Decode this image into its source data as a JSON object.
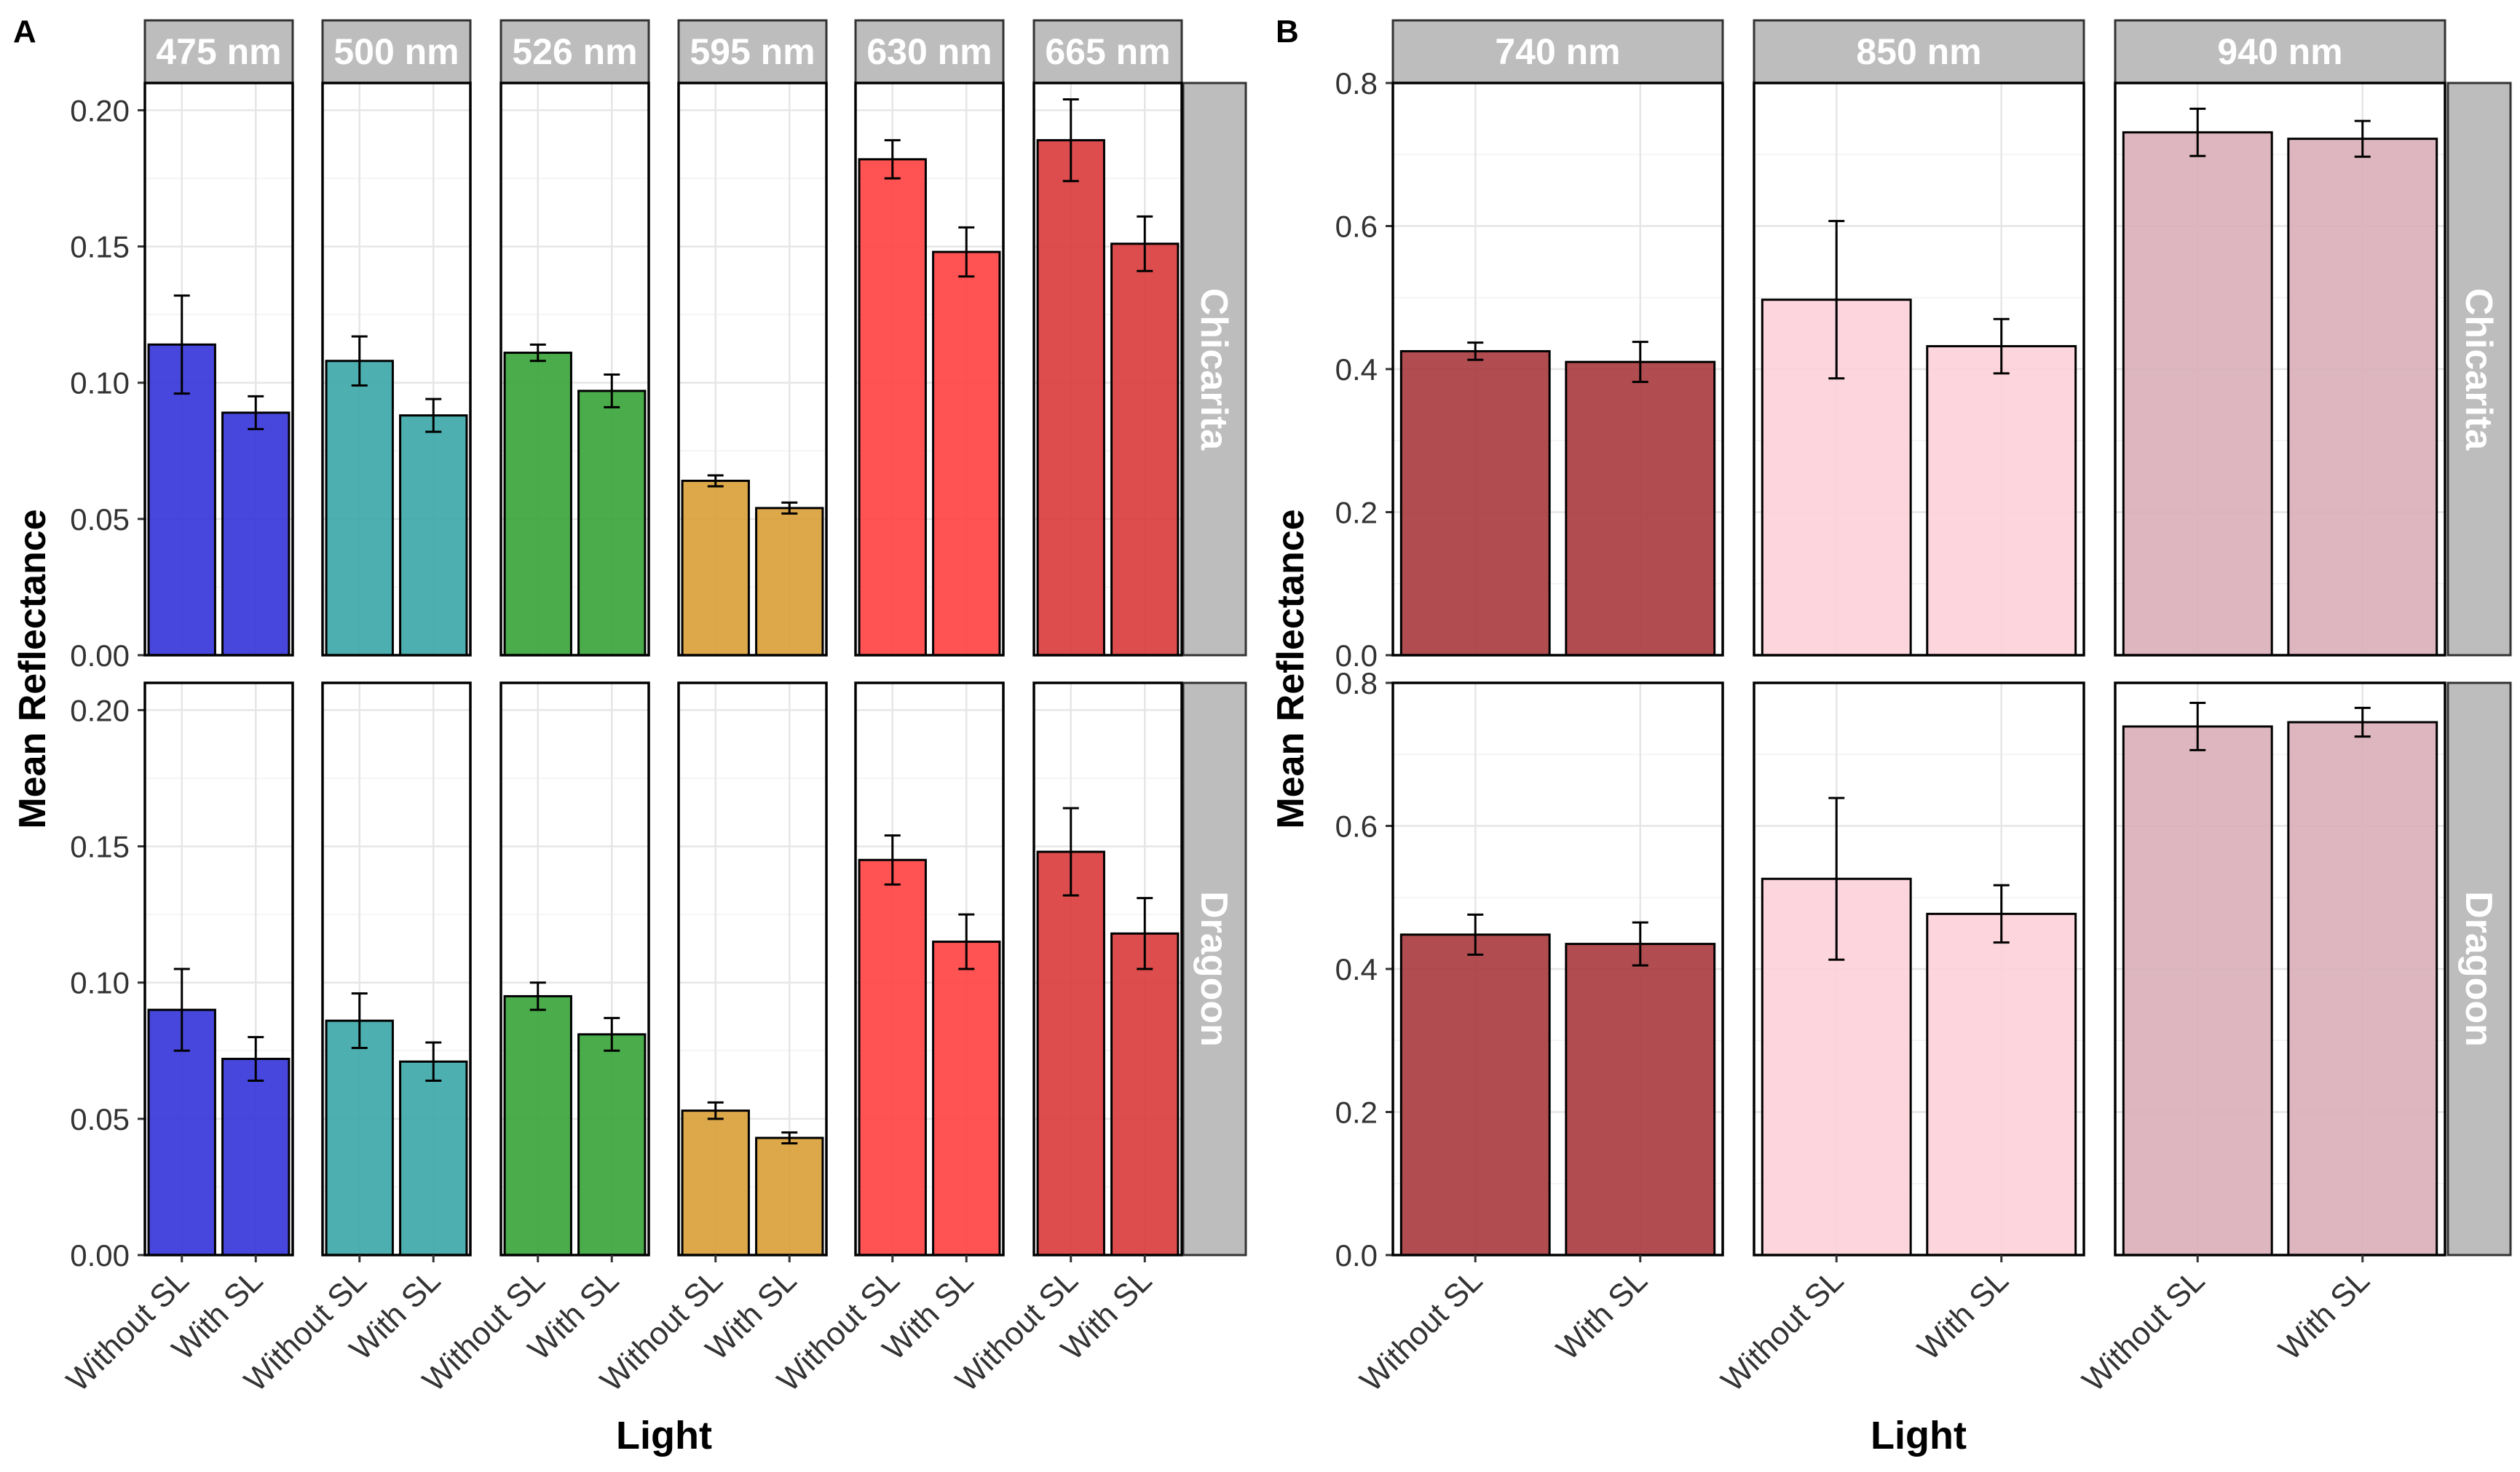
{
  "figure": {
    "panel_a_letter": "A",
    "panel_b_letter": "B"
  },
  "chart_data": [
    {
      "panel": "A",
      "type": "bar",
      "title": "",
      "xlabel": "Light",
      "ylabel": "Mean Reflectance",
      "categories": [
        "Without SL",
        "With SL"
      ],
      "ylim": [
        0,
        0.21
      ],
      "yticks": [
        "0.00",
        "0.05",
        "0.10",
        "0.15",
        "0.20"
      ],
      "ytick_values": [
        0,
        0.05,
        0.1,
        0.15,
        0.2
      ],
      "grid": true,
      "rows": [
        "Chicarita",
        "Dragoon"
      ],
      "cols": [
        {
          "label": "475 nm",
          "color": "#3333d9"
        },
        {
          "label": "500 nm",
          "color": "#3aa6a6"
        },
        {
          "label": "526 nm",
          "color": "#36a336"
        },
        {
          "label": "595 nm",
          "color": "#d99e36"
        },
        {
          "label": "630 nm",
          "color": "#ff4040"
        },
        {
          "label": "665 nm",
          "color": "#d93a3a"
        }
      ],
      "values": [
        [
          [
            0.114,
            0.089
          ],
          [
            0.108,
            0.088
          ],
          [
            0.111,
            0.097
          ],
          [
            0.064,
            0.054
          ],
          [
            0.182,
            0.148
          ],
          [
            0.189,
            0.151
          ]
        ],
        [
          [
            0.09,
            0.072
          ],
          [
            0.086,
            0.071
          ],
          [
            0.095,
            0.081
          ],
          [
            0.053,
            0.043
          ],
          [
            0.145,
            0.115
          ],
          [
            0.148,
            0.118
          ]
        ]
      ],
      "errors": [
        [
          [
            0.018,
            0.006
          ],
          [
            0.009,
            0.006
          ],
          [
            0.003,
            0.006
          ],
          [
            0.002,
            0.002
          ],
          [
            0.007,
            0.009
          ],
          [
            0.015,
            0.01
          ]
        ],
        [
          [
            0.015,
            0.008
          ],
          [
            0.01,
            0.007
          ],
          [
            0.005,
            0.006
          ],
          [
            0.003,
            0.002
          ],
          [
            0.009,
            0.01
          ],
          [
            0.016,
            0.013
          ]
        ]
      ]
    },
    {
      "panel": "B",
      "type": "bar",
      "title": "",
      "xlabel": "Light",
      "ylabel": "Mean Reflectance",
      "categories": [
        "Without SL",
        "With SL"
      ],
      "ylim": [
        0,
        0.8
      ],
      "yticks": [
        "0.0",
        "0.2",
        "0.4",
        "0.6",
        "0.8"
      ],
      "ytick_values": [
        0,
        0.2,
        0.4,
        0.6,
        0.8
      ],
      "grid": true,
      "rows": [
        "Chicarita",
        "Dragoon"
      ],
      "cols": [
        {
          "label": "740 nm",
          "color": "#a83a3d"
        },
        {
          "label": "850 nm",
          "color": "#fdd0d8"
        },
        {
          "label": "940 nm",
          "color": "#d9aeb8"
        }
      ],
      "values": [
        [
          [
            0.425,
            0.41
          ],
          [
            0.497,
            0.432
          ],
          [
            0.731,
            0.722
          ]
        ],
        [
          [
            0.448,
            0.435
          ],
          [
            0.526,
            0.477
          ],
          [
            0.739,
            0.745
          ]
        ]
      ],
      "errors": [
        [
          [
            0.012,
            0.028
          ],
          [
            0.11,
            0.038
          ],
          [
            0.033,
            0.025
          ]
        ],
        [
          [
            0.028,
            0.03
          ],
          [
            0.113,
            0.04
          ],
          [
            0.033,
            0.02
          ]
        ]
      ]
    }
  ]
}
